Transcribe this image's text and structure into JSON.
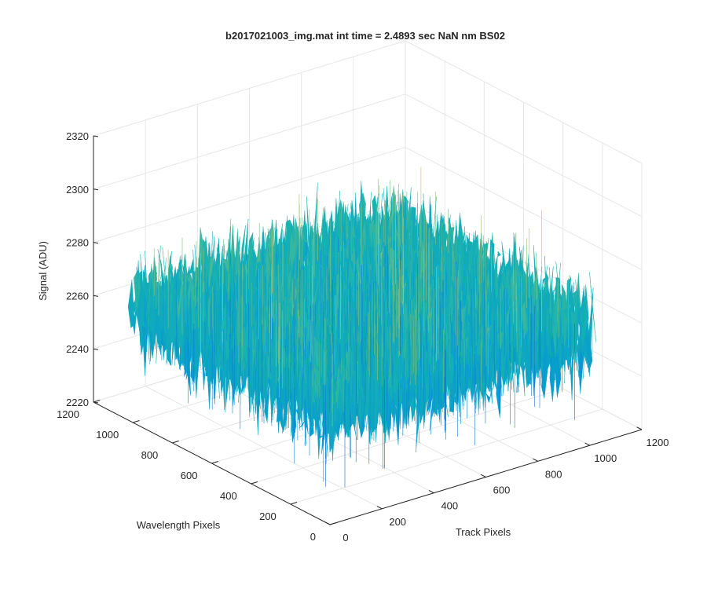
{
  "chart_data": {
    "type": "surface",
    "title": "b2017021003_img.mat int time = 2.4893 sec  NaN nm BS02",
    "xlabel": "Track Pixels",
    "ylabel": "Wavelength Pixels",
    "zlabel": "Signal (ADU)",
    "xlim": [
      0,
      1200
    ],
    "ylim": [
      0,
      1200
    ],
    "zlim": [
      2220,
      2320
    ],
    "x_ticks": [
      "0",
      "200",
      "400",
      "600",
      "800",
      "1000",
      "1200"
    ],
    "y_ticks": [
      "0",
      "200",
      "400",
      "600",
      "800",
      "1000",
      "1200"
    ],
    "z_ticks": [
      "2220",
      "2240",
      "2260",
      "2280",
      "2300",
      "2320"
    ],
    "grid": true,
    "colormap": "parula",
    "surface": {
      "x_range": [
        0,
        1024
      ],
      "y_range": [
        0,
        1024
      ],
      "mean_signal": 2262,
      "noise_min": 2225,
      "noise_max": 2305
    },
    "colors": {
      "axis": "#262626",
      "grid": "#e6e6e6",
      "background": "#ffffff"
    }
  }
}
